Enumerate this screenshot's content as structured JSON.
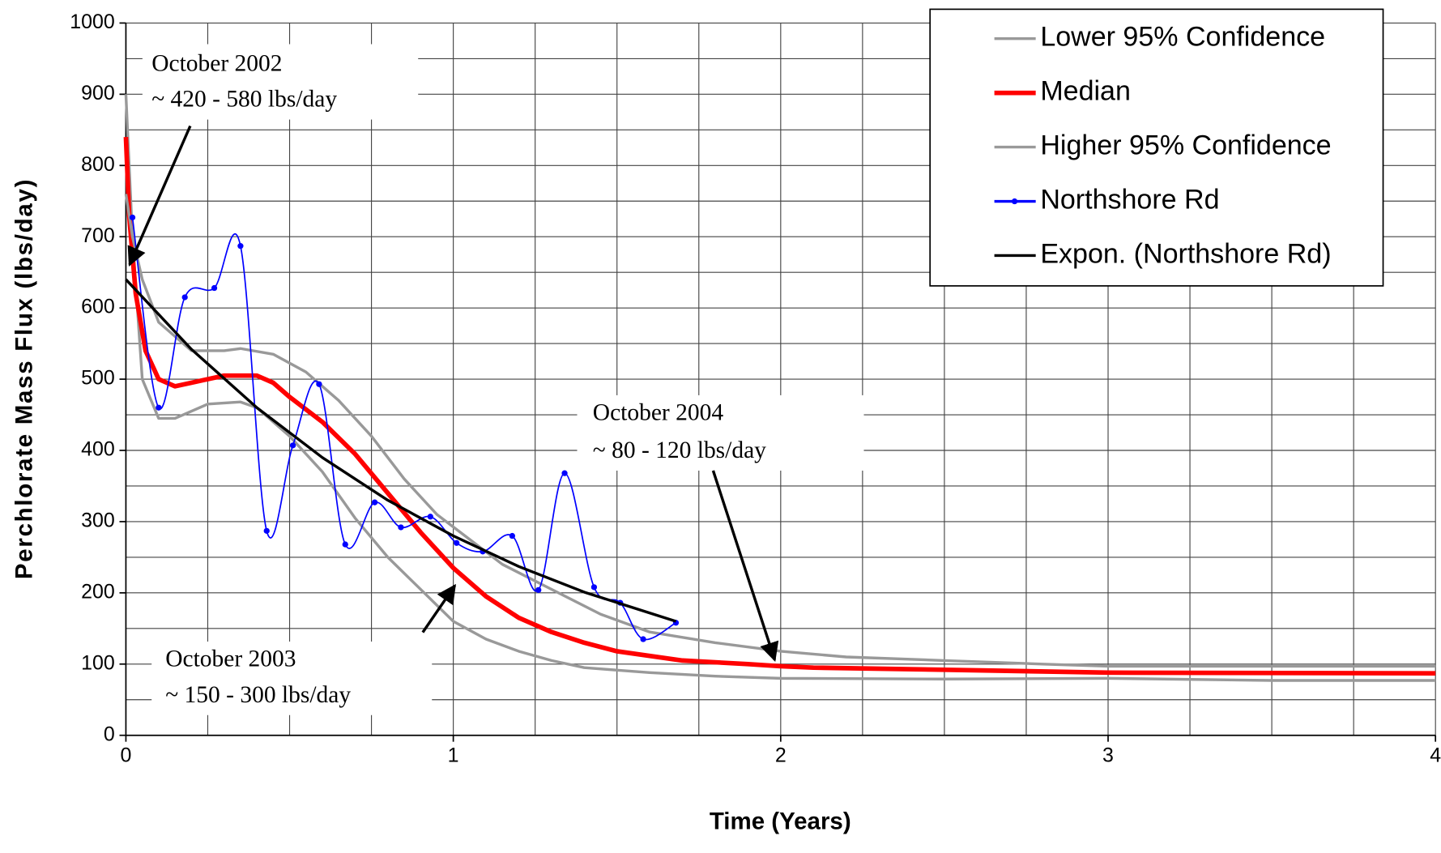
{
  "chart_data": {
    "type": "line",
    "x_label": "Time (Years)",
    "y_label": "Perchlorate Mass Flux (lbs/day)",
    "xlim": [
      0,
      4
    ],
    "ylim": [
      0,
      1000
    ],
    "xticks": [
      0,
      1,
      2,
      3,
      4
    ],
    "yticks": [
      0,
      100,
      200,
      300,
      400,
      500,
      600,
      700,
      800,
      900,
      1000
    ],
    "grid": true,
    "grid_x": [
      0.25,
      0.5,
      0.75,
      1.25,
      1.5,
      1.75,
      2.25,
      2.5,
      2.75,
      3.25,
      3.5,
      3.75
    ],
    "grid_y": [
      50,
      150,
      250,
      350,
      450,
      550,
      650,
      750,
      850,
      950
    ],
    "legend": "top-right",
    "series": [
      {
        "name": "Lower 95% Confidence",
        "color": "#999999",
        "width": 3,
        "x": [
          0,
          0.02,
          0.05,
          0.1,
          0.15,
          0.25,
          0.35,
          0.4,
          0.5,
          0.6,
          0.7,
          0.8,
          0.9,
          1.0,
          1.1,
          1.2,
          1.3,
          1.4,
          1.6,
          1.8,
          2.0,
          2.5,
          3.0,
          3.5,
          4.0
        ],
        "values": [
          900,
          700,
          500,
          445,
          445,
          465,
          468,
          460,
          420,
          370,
          305,
          250,
          205,
          160,
          135,
          118,
          105,
          95,
          88,
          83,
          80,
          79,
          80,
          77,
          77
        ]
      },
      {
        "name": "Median",
        "color": "#ff0000",
        "width": 5,
        "x": [
          0,
          0.01,
          0.03,
          0.06,
          0.1,
          0.15,
          0.2,
          0.3,
          0.4,
          0.45,
          0.5,
          0.6,
          0.7,
          0.8,
          0.9,
          1.0,
          1.1,
          1.2,
          1.3,
          1.4,
          1.5,
          1.7,
          1.9,
          2.0,
          2.1,
          2.5,
          3.0,
          4.0
        ],
        "values": [
          840,
          730,
          620,
          540,
          500,
          490,
          495,
          505,
          505,
          495,
          475,
          440,
          395,
          340,
          285,
          235,
          195,
          165,
          145,
          130,
          118,
          105,
          100,
          97,
          95,
          92,
          88,
          87
        ]
      },
      {
        "name": "Higher 95% Confidence",
        "color": "#999999",
        "width": 3,
        "x": [
          0,
          0.02,
          0.05,
          0.1,
          0.2,
          0.3,
          0.35,
          0.45,
          0.55,
          0.65,
          0.75,
          0.85,
          0.95,
          1.05,
          1.15,
          1.3,
          1.45,
          1.6,
          1.8,
          2.0,
          2.2,
          2.5,
          2.8,
          3.0,
          4.0
        ],
        "values": [
          760,
          700,
          640,
          580,
          540,
          540,
          543,
          535,
          510,
          470,
          420,
          360,
          310,
          275,
          240,
          205,
          170,
          145,
          130,
          118,
          110,
          105,
          100,
          97,
          97
        ]
      },
      {
        "name": "Northshore Rd",
        "color": "#0000ff",
        "width": 1.5,
        "markers": true,
        "x": [
          0.02,
          0.1,
          0.18,
          0.27,
          0.35,
          0.43,
          0.51,
          0.59,
          0.67,
          0.76,
          0.84,
          0.93,
          1.01,
          1.09,
          1.18,
          1.26,
          1.34,
          1.43,
          1.51,
          1.58,
          1.68
        ],
        "values": [
          727,
          460,
          615,
          628,
          687,
          287,
          407,
          493,
          268,
          327,
          292,
          307,
          270,
          258,
          280,
          204,
          368,
          208,
          186,
          135,
          158
        ]
      },
      {
        "name": "Expon. (Northshore Rd)",
        "color": "#000000",
        "width": 3,
        "x": [
          0,
          0.2,
          0.4,
          0.6,
          0.8,
          1.0,
          1.2,
          1.4,
          1.68
        ],
        "values": [
          640,
          542,
          460,
          390,
          330,
          280,
          237,
          201,
          160
        ]
      }
    ],
    "annotations": [
      {
        "text": [
          "October 2002",
          "~ 420 - 580 lbs/day"
        ]
      },
      {
        "text": [
          "October 2004",
          "~ 80 - 120 lbs/day"
        ]
      },
      {
        "text": [
          "October 2003",
          "~ 150 - 300 lbs/day"
        ]
      }
    ]
  }
}
